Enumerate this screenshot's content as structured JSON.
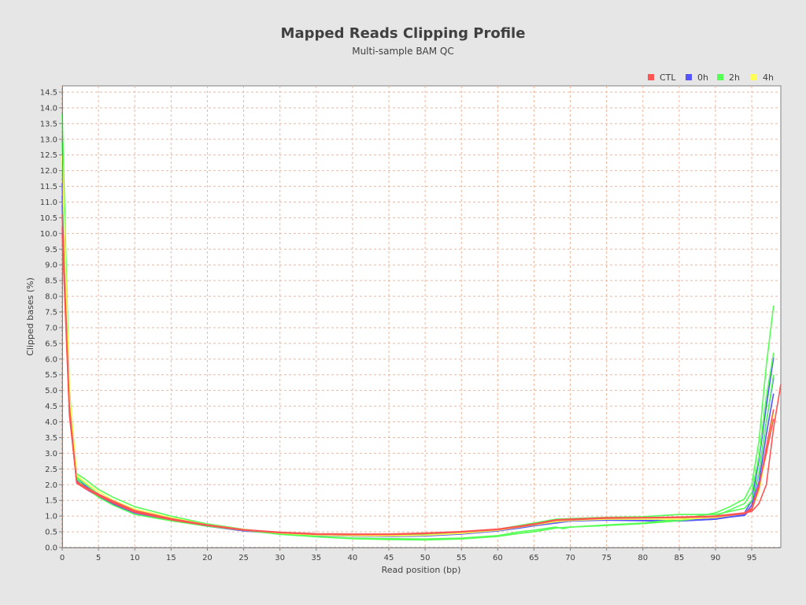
{
  "chart_data": {
    "type": "line",
    "title": "Mapped Reads Clipping Profile",
    "subtitle": "Multi-sample BAM QC",
    "xlabel": "Read position (bp)",
    "ylabel": "Clipped bases (%)",
    "xlim": [
      0,
      99
    ],
    "ylim": [
      0,
      14.7
    ],
    "x_ticks": [
      0,
      5,
      10,
      15,
      20,
      25,
      30,
      35,
      40,
      45,
      50,
      55,
      60,
      65,
      70,
      75,
      80,
      85,
      90,
      95
    ],
    "y_ticks": [
      0.0,
      0.5,
      1.0,
      1.5,
      2.0,
      2.5,
      3.0,
      3.5,
      4.0,
      4.5,
      5.0,
      5.5,
      6.0,
      6.5,
      7.0,
      7.5,
      8.0,
      8.5,
      9.0,
      9.5,
      10.0,
      10.5,
      11.0,
      11.5,
      12.0,
      12.5,
      13.0,
      13.5,
      14.0,
      14.5
    ],
    "grid": true,
    "legend_position": "top-right",
    "groups": [
      {
        "name": "CTL",
        "color": "#ff5555"
      },
      {
        "name": "0h",
        "color": "#5555ff"
      },
      {
        "name": "2h",
        "color": "#55ff55"
      },
      {
        "name": "4h",
        "color": "#ffff55"
      }
    ],
    "series": [
      {
        "group": "0h",
        "color": "#5555ff",
        "x": [
          0,
          1,
          2,
          3,
          5,
          7,
          10,
          15,
          20,
          25,
          30,
          35,
          40,
          45,
          50,
          55,
          60,
          63,
          65,
          68,
          70,
          75,
          80,
          85,
          90,
          92,
          94,
          95,
          96,
          97,
          98
        ],
        "values": [
          11.6,
          4.6,
          2.2,
          2.0,
          1.7,
          1.45,
          1.15,
          0.9,
          0.7,
          0.55,
          0.45,
          0.4,
          0.38,
          0.35,
          0.38,
          0.45,
          0.55,
          0.65,
          0.72,
          0.82,
          0.88,
          0.9,
          0.88,
          0.85,
          0.92,
          1.0,
          1.1,
          1.5,
          2.8,
          4.5,
          6.05
        ]
      },
      {
        "group": "0h",
        "color": "#5555ff",
        "x": [
          0,
          1,
          2,
          3,
          5,
          7,
          10,
          15,
          20,
          25,
          30,
          35,
          40,
          45,
          50,
          55,
          60,
          63,
          65,
          68,
          70,
          75,
          80,
          85,
          90,
          92,
          94,
          95,
          96,
          97,
          98
        ],
        "values": [
          11.2,
          4.4,
          2.15,
          1.95,
          1.65,
          1.4,
          1.1,
          0.88,
          0.68,
          0.54,
          0.44,
          0.4,
          0.37,
          0.36,
          0.38,
          0.44,
          0.54,
          0.64,
          0.7,
          0.8,
          0.85,
          0.88,
          0.86,
          0.85,
          0.9,
          0.98,
          1.05,
          1.35,
          2.4,
          4.0,
          5.4
        ]
      },
      {
        "group": "0h",
        "color": "#5555ff",
        "x": [
          0,
          1,
          2,
          3,
          5,
          7,
          10,
          15,
          20,
          25,
          30,
          35,
          40,
          45,
          50,
          55,
          60,
          63,
          65,
          68,
          70,
          75,
          80,
          85,
          90,
          92,
          94,
          95,
          96,
          97,
          98
        ],
        "values": [
          10.9,
          4.3,
          2.1,
          1.9,
          1.62,
          1.38,
          1.1,
          0.86,
          0.68,
          0.53,
          0.44,
          0.39,
          0.37,
          0.35,
          0.37,
          0.43,
          0.53,
          0.62,
          0.69,
          0.78,
          0.84,
          0.87,
          0.85,
          0.84,
          0.9,
          0.97,
          1.02,
          1.25,
          2.1,
          3.6,
          4.9
        ]
      },
      {
        "group": "2h",
        "color": "#55ff55",
        "x": [
          0,
          1,
          2,
          3,
          5,
          7,
          10,
          15,
          20,
          25,
          30,
          35,
          40,
          45,
          50,
          55,
          60,
          63,
          65,
          68,
          69,
          70,
          75,
          80,
          85,
          90,
          92,
          94,
          95,
          96,
          97,
          98
        ],
        "values": [
          13.8,
          5.0,
          2.35,
          2.2,
          1.85,
          1.6,
          1.3,
          1.0,
          0.75,
          0.58,
          0.45,
          0.35,
          0.3,
          0.28,
          0.27,
          0.3,
          0.38,
          0.5,
          0.55,
          0.65,
          0.6,
          0.65,
          0.72,
          0.78,
          0.9,
          1.1,
          1.3,
          1.55,
          2.0,
          3.4,
          5.8,
          7.7
        ]
      },
      {
        "group": "2h",
        "color": "#55ff55",
        "x": [
          0,
          1,
          2,
          3,
          5,
          7,
          10,
          15,
          20,
          25,
          30,
          35,
          40,
          45,
          50,
          55,
          60,
          63,
          65,
          68,
          70,
          75,
          80,
          85,
          90,
          92,
          94,
          95,
          96,
          97,
          98
        ],
        "values": [
          12.9,
          4.8,
          2.25,
          2.05,
          1.7,
          1.45,
          1.2,
          0.92,
          0.7,
          0.55,
          0.42,
          0.34,
          0.28,
          0.25,
          0.24,
          0.27,
          0.35,
          0.45,
          0.5,
          0.62,
          0.65,
          0.7,
          0.76,
          0.85,
          1.0,
          1.2,
          1.4,
          1.75,
          2.9,
          4.8,
          6.2
        ]
      },
      {
        "group": "2h",
        "color": "#55ff55",
        "x": [
          0,
          1,
          2,
          3,
          5,
          7,
          10,
          15,
          20,
          25,
          30,
          35,
          40,
          45,
          50,
          55,
          60,
          63,
          65,
          68,
          70,
          75,
          80,
          85,
          90,
          92,
          94,
          95,
          96,
          97,
          98
        ],
        "values": [
          12.3,
          4.7,
          2.2,
          1.95,
          1.6,
          1.35,
          1.05,
          0.85,
          0.68,
          0.55,
          0.45,
          0.4,
          0.4,
          0.4,
          0.42,
          0.48,
          0.58,
          0.7,
          0.78,
          0.9,
          0.92,
          0.96,
          0.98,
          1.05,
          1.05,
          1.15,
          1.25,
          1.5,
          2.4,
          4.0,
          5.5
        ]
      },
      {
        "group": "4h",
        "color": "#ffff55",
        "x": [
          0,
          1,
          2,
          3,
          5,
          7,
          10,
          15,
          20,
          25,
          30,
          35,
          40,
          45,
          50,
          55,
          60,
          63,
          65,
          68,
          70,
          75,
          80,
          85,
          90,
          92,
          94,
          95,
          96,
          97,
          98
        ],
        "values": [
          12.5,
          4.9,
          2.3,
          2.1,
          1.78,
          1.5,
          1.22,
          0.95,
          0.72,
          0.57,
          0.46,
          0.4,
          0.38,
          0.37,
          0.39,
          0.45,
          0.55,
          0.65,
          0.72,
          0.82,
          0.86,
          0.9,
          0.9,
          0.9,
          0.95,
          1.02,
          1.08,
          1.2,
          1.8,
          3.0,
          4.3
        ]
      },
      {
        "group": "CTL",
        "color": "#ff5555",
        "x": [
          0,
          1,
          2,
          3,
          5,
          7,
          10,
          15,
          20,
          25,
          30,
          35,
          40,
          45,
          50,
          55,
          60,
          63,
          65,
          68,
          70,
          75,
          80,
          85,
          90,
          92,
          94,
          95,
          96,
          97,
          98,
          99
        ],
        "values": [
          10.6,
          4.5,
          2.1,
          1.92,
          1.68,
          1.45,
          1.15,
          0.9,
          0.7,
          0.56,
          0.48,
          0.43,
          0.42,
          0.42,
          0.45,
          0.5,
          0.58,
          0.68,
          0.75,
          0.88,
          0.9,
          0.95,
          0.95,
          0.97,
          1.0,
          1.05,
          1.1,
          1.15,
          1.4,
          2.0,
          3.8,
          5.2
        ]
      },
      {
        "group": "CTL",
        "color": "#ff5555",
        "x": [
          0,
          1,
          2,
          3,
          5,
          7,
          10,
          15,
          20,
          25,
          30,
          35,
          40,
          45,
          50,
          55,
          60,
          63,
          65,
          68,
          70,
          75,
          80,
          85,
          90,
          92,
          94,
          95,
          96,
          97,
          98
        ],
        "values": [
          10.2,
          4.3,
          2.05,
          1.9,
          1.65,
          1.42,
          1.12,
          0.88,
          0.7,
          0.55,
          0.47,
          0.42,
          0.41,
          0.41,
          0.44,
          0.49,
          0.57,
          0.66,
          0.73,
          0.86,
          0.88,
          0.93,
          0.94,
          0.95,
          0.98,
          1.03,
          1.08,
          1.2,
          1.9,
          3.2,
          4.4
        ]
      },
      {
        "group": "CTL",
        "color": "#ff5555",
        "x": [
          0,
          1,
          2,
          3,
          5,
          7,
          10,
          15,
          20,
          25,
          30,
          35,
          40,
          45,
          50,
          55,
          60,
          63,
          65,
          68,
          70,
          75,
          80,
          85,
          90,
          92,
          94,
          95,
          96,
          97,
          98
        ],
        "values": [
          10.0,
          4.2,
          2.1,
          1.95,
          1.7,
          1.48,
          1.18,
          0.92,
          0.72,
          0.57,
          0.49,
          0.44,
          0.43,
          0.43,
          0.46,
          0.51,
          0.59,
          0.68,
          0.75,
          0.88,
          0.9,
          0.94,
          0.95,
          0.96,
          1.0,
          1.05,
          1.1,
          1.25,
          2.0,
          3.0,
          4.1
        ]
      }
    ]
  }
}
